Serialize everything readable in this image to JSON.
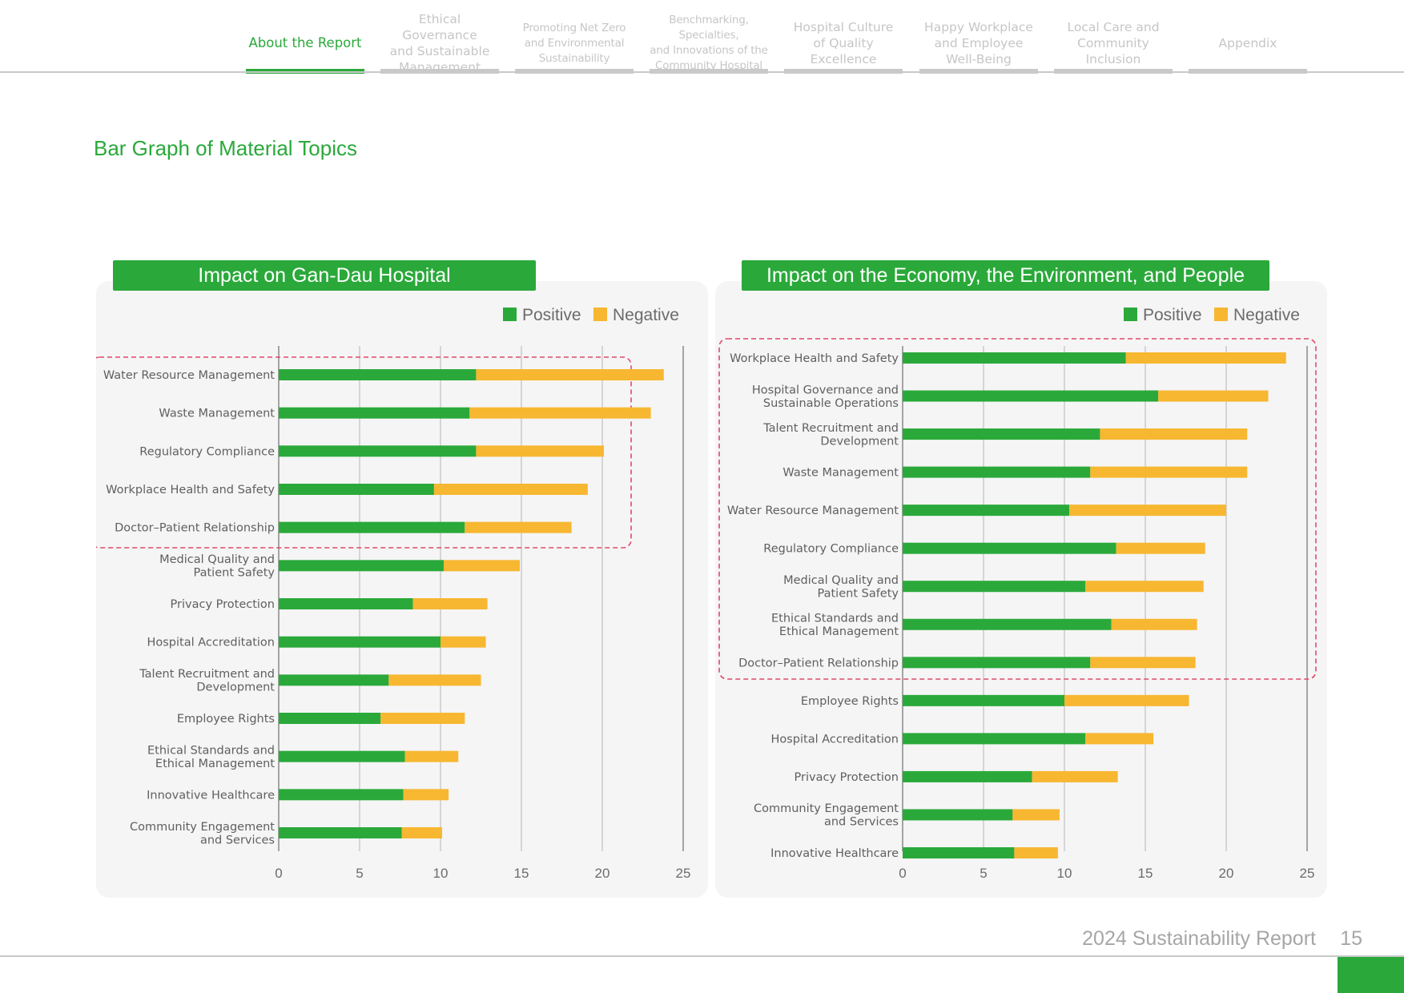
{
  "nav": {
    "tabs": [
      {
        "lines": [
          "About the Report"
        ],
        "active": true,
        "small": false
      },
      {
        "lines": [
          "Ethical Governance",
          "and Sustainable",
          "Management"
        ],
        "active": false,
        "small": false
      },
      {
        "lines": [
          "Promoting Net Zero",
          "and Environmental",
          "Sustainability"
        ],
        "active": false,
        "small": true
      },
      {
        "lines": [
          "Benchmarking, Specialties,",
          "and Innovations of the",
          "Community Hospital"
        ],
        "active": false,
        "small": true
      },
      {
        "lines": [
          "Hospital Culture",
          "of Quality",
          "Excellence"
        ],
        "active": false,
        "small": false
      },
      {
        "lines": [
          "Happy Workplace",
          "and Employee",
          "Well-Being"
        ],
        "active": false,
        "small": false
      },
      {
        "lines": [
          "Local Care and",
          "Community",
          "Inclusion"
        ],
        "active": false,
        "small": false
      },
      {
        "lines": [
          "Appendix"
        ],
        "active": false,
        "small": false
      }
    ]
  },
  "section_title": "Bar Graph of Material Topics",
  "colors": {
    "positive": "#2aa93a",
    "negative": "#f7b731",
    "highlight": "#e0496a"
  },
  "chart_data": [
    {
      "type": "bar",
      "orientation": "horizontal",
      "stacked": true,
      "title": "Impact on Gan-Dau Hospital",
      "legend": [
        "Positive",
        "Negative"
      ],
      "legend_position": "top-right",
      "xlim": [
        0,
        25
      ],
      "xticks": [
        0,
        5,
        10,
        15,
        20,
        25
      ],
      "grid": true,
      "highlight_top": 5,
      "categories": [
        [
          "Water Resource Management"
        ],
        [
          "Waste Management"
        ],
        [
          "Regulatory Compliance"
        ],
        [
          "Workplace Health and Safety"
        ],
        [
          "Doctor–Patient Relationship"
        ],
        [
          "Medical Quality and",
          "Patient Safety"
        ],
        [
          "Privacy Protection"
        ],
        [
          "Hospital Accreditation"
        ],
        [
          "Talent Recruitment and",
          "Development"
        ],
        [
          "Employee Rights"
        ],
        [
          "Ethical Standards and",
          "Ethical Management"
        ],
        [
          "Innovative Healthcare"
        ],
        [
          "Community Engagement",
          "and Services"
        ]
      ],
      "series": [
        {
          "name": "Positive",
          "values": [
            12.2,
            11.8,
            12.2,
            9.6,
            11.5,
            10.2,
            8.3,
            10.0,
            6.8,
            6.3,
            7.8,
            7.7,
            7.6
          ]
        },
        {
          "name": "Negative",
          "values": [
            11.6,
            11.2,
            7.9,
            9.5,
            6.6,
            4.7,
            4.6,
            2.8,
            5.7,
            5.2,
            3.3,
            2.8,
            2.5
          ]
        }
      ]
    },
    {
      "type": "bar",
      "orientation": "horizontal",
      "stacked": true,
      "title": "Impact on the Economy, the Environment, and People",
      "legend": [
        "Positive",
        "Negative"
      ],
      "legend_position": "top-right",
      "xlim": [
        0,
        25
      ],
      "xticks": [
        0,
        5,
        10,
        15,
        20,
        25
      ],
      "grid": true,
      "highlight_top": 9,
      "categories": [
        [
          "Workplace Health and Safety"
        ],
        [
          "Hospital Governance and",
          "Sustainable Operations"
        ],
        [
          "Talent Recruitment and",
          "Development"
        ],
        [
          "Waste Management"
        ],
        [
          "Water Resource Management"
        ],
        [
          "Regulatory Compliance"
        ],
        [
          "Medical Quality and",
          "Patient Safety"
        ],
        [
          "Ethical Standards and",
          "Ethical Management"
        ],
        [
          "Doctor–Patient Relationship"
        ],
        [
          "Employee Rights"
        ],
        [
          "Hospital Accreditation"
        ],
        [
          "Privacy Protection"
        ],
        [
          "Community Engagement",
          "and Services"
        ],
        [
          "Innovative Healthcare"
        ]
      ],
      "series": [
        {
          "name": "Positive",
          "values": [
            13.8,
            15.8,
            12.2,
            11.6,
            10.3,
            13.2,
            11.3,
            12.9,
            11.6,
            10.0,
            11.3,
            8.0,
            6.8,
            6.9
          ]
        },
        {
          "name": "Negative",
          "values": [
            9.9,
            6.8,
            9.1,
            9.7,
            9.7,
            5.5,
            7.3,
            5.3,
            6.5,
            7.7,
            4.2,
            5.3,
            2.9,
            2.7
          ]
        }
      ]
    }
  ],
  "footer": {
    "label": "2024 Sustainability  Report",
    "page": "15"
  }
}
